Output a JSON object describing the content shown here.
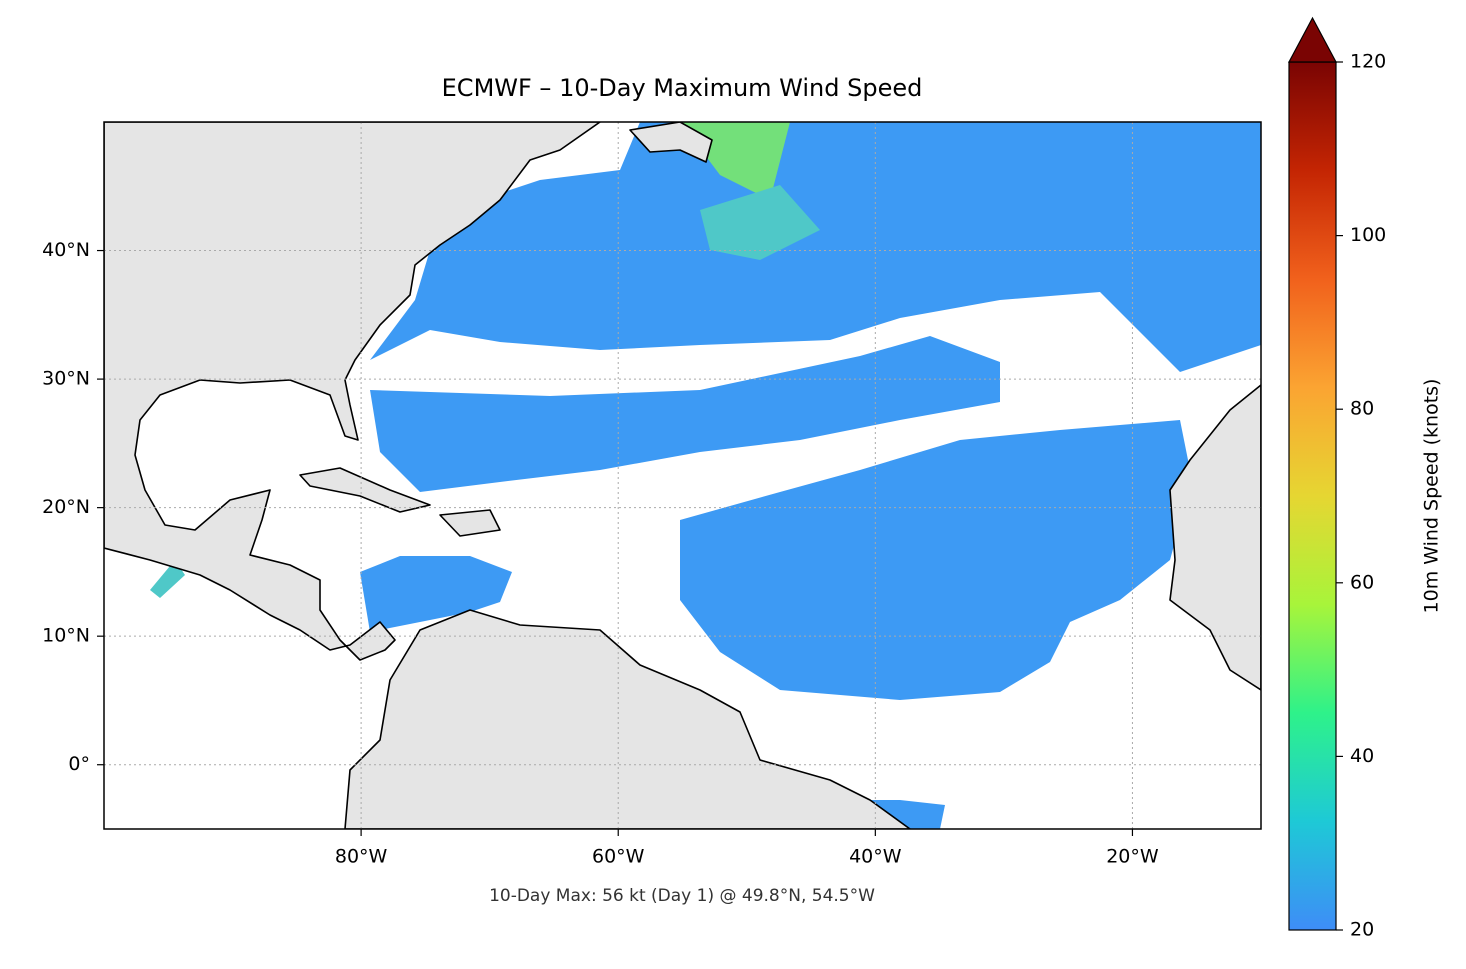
{
  "chart_data": {
    "type": "map",
    "title": "ECMWF – 10-Day Maximum Wind Speed",
    "annotation": "10-Day Max: 56 kt (Day 1) @ 49.8°N, 54.5°W",
    "xlim": [
      -100,
      -10
    ],
    "ylim": [
      -5,
      50
    ],
    "xticks": [
      {
        "value": -80,
        "label": "80°W"
      },
      {
        "value": -60,
        "label": "60°W"
      },
      {
        "value": -40,
        "label": "40°W"
      },
      {
        "value": -20,
        "label": "20°W"
      }
    ],
    "yticks": [
      {
        "value": 0,
        "label": "0°"
      },
      {
        "value": 10,
        "label": "10°N"
      },
      {
        "value": 20,
        "label": "20°N"
      },
      {
        "value": 30,
        "label": "30°N"
      },
      {
        "value": 40,
        "label": "40°N"
      }
    ],
    "grid": true,
    "colorbar": {
      "label": "10m Wind Speed (knots)",
      "clim": [
        20,
        120
      ],
      "ticks": [
        20,
        40,
        60,
        80,
        100,
        120
      ],
      "extend": "max",
      "colors": [
        "#3e8df7",
        "#1ec9d6",
        "#2ef28a",
        "#a8f43a",
        "#e6d632",
        "#fba432",
        "#f1611c",
        "#c42503",
        "#7a0403"
      ]
    }
  }
}
